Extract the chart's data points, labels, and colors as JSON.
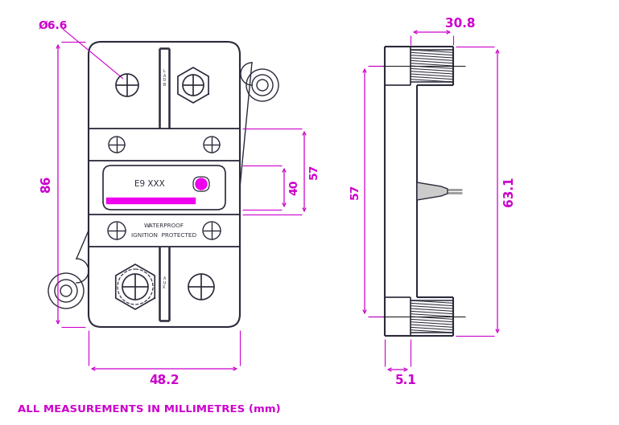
{
  "bg_color": "#ffffff",
  "line_color": "#2a2a3a",
  "dim_color": "#cc00cc",
  "fig_width": 7.69,
  "fig_height": 5.29,
  "dpi": 100,
  "bottom_text": "ALL MEASUREMENTS IN MILLIMETRES (mm)",
  "dim_text_66": "Ø6.6",
  "dim_text_86": "86",
  "dim_text_482": "48.2",
  "dim_text_40": "40",
  "dim_text_57": "57",
  "dim_text_308": "30.8",
  "dim_text_631": "63.1",
  "dim_text_51": "5.1",
  "label_e9": "E9 XXX",
  "label_wp": "WATERPROOF",
  "label_ip": "IGNITION  PROTECTED",
  "magenta": "#ee00ee",
  "gray_fill": "#cccccc",
  "thread_color": "#2a2a3a"
}
